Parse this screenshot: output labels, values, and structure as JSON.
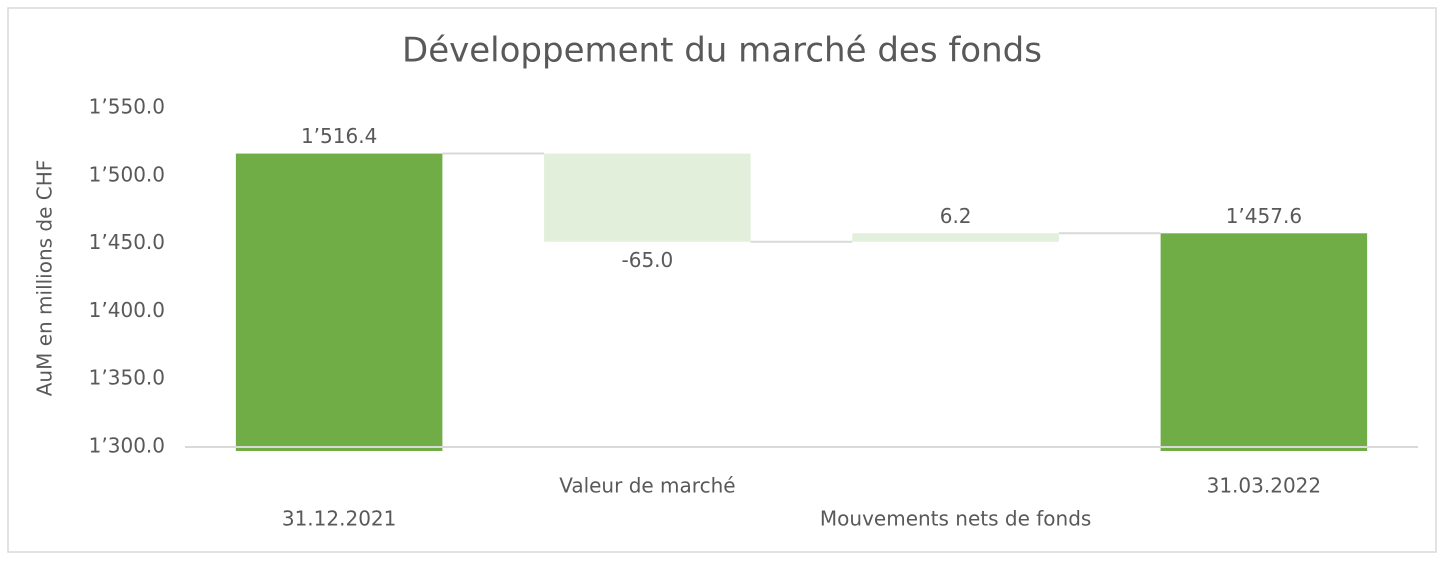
{
  "chart_data": {
    "type": "waterfall",
    "title": "Développement du marché des fonds",
    "y_label": "AuM en millions de CHF",
    "categories": [
      "31.12.2021",
      "Valeur de marché",
      "Mouvements nets de fonds",
      "31.03.2022"
    ],
    "values": [
      1516.4,
      -65.0,
      6.2,
      1457.6
    ],
    "value_labels": [
      "1’516.4",
      "-65.0",
      "6.2",
      "1’457.6"
    ],
    "totals": [
      true,
      false,
      false,
      true
    ],
    "total_color": "#70ad47",
    "change_color": "#e2efda",
    "ylim": [
      1300,
      1550
    ],
    "yticks": [
      {
        "value": 1300,
        "label": "1’300.0"
      },
      {
        "value": 1350,
        "label": "1’350.0"
      },
      {
        "value": 1400,
        "label": "1’400.0"
      },
      {
        "value": 1450,
        "label": "1’450.0"
      },
      {
        "value": 1500,
        "label": "1’500.0"
      },
      {
        "value": 1550,
        "label": "1’550.0"
      }
    ]
  }
}
